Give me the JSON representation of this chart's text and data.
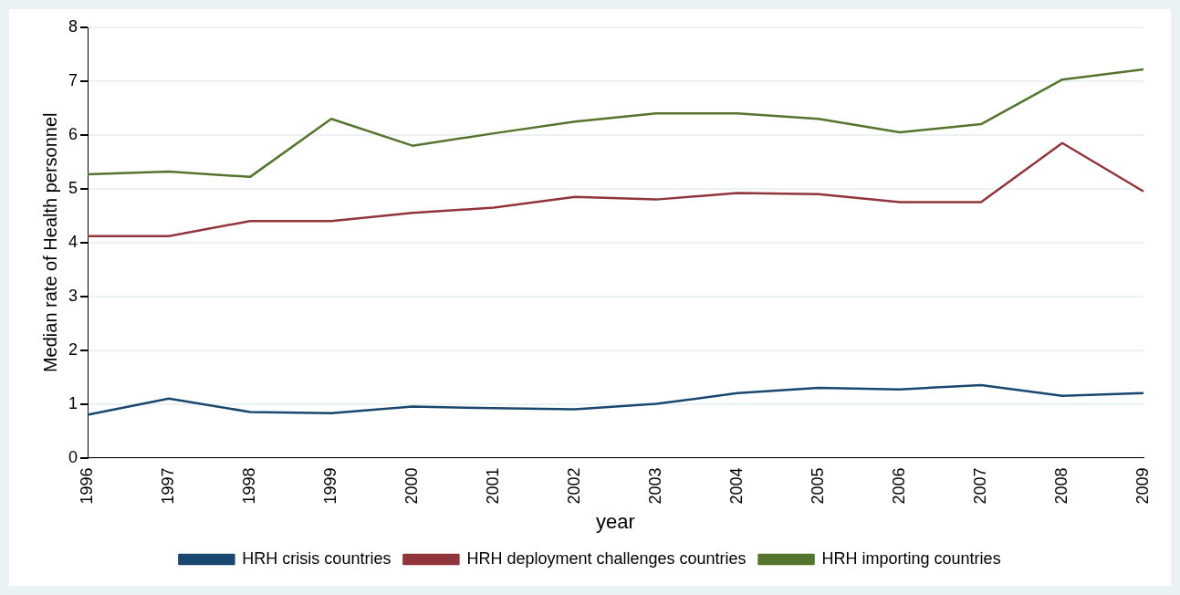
{
  "chart_data": {
    "type": "line",
    "xlabel": "year",
    "ylabel": "Median rate of Health personnel",
    "categories": [
      "1996",
      "1997",
      "1998",
      "1999",
      "2000",
      "2001",
      "2002",
      "2003",
      "2004",
      "2005",
      "2006",
      "2007",
      "2008",
      "2009"
    ],
    "series": [
      {
        "name": "HRH crisis countries",
        "color": "#1a476f",
        "values": [
          0.8,
          1.1,
          0.85,
          0.83,
          0.95,
          0.92,
          0.9,
          1.0,
          1.2,
          1.3,
          1.27,
          1.35,
          1.15,
          1.2
        ]
      },
      {
        "name": "HRH deployment challenges countries",
        "color": "#90353b",
        "values": [
          4.12,
          4.12,
          4.4,
          4.4,
          4.55,
          4.65,
          4.85,
          4.8,
          4.92,
          4.9,
          4.75,
          4.75,
          5.85,
          4.95
        ]
      },
      {
        "name": "HRH importing countries",
        "color": "#55752f",
        "values": [
          5.27,
          5.32,
          5.22,
          6.3,
          5.8,
          6.03,
          6.25,
          6.4,
          6.4,
          6.3,
          6.05,
          6.2,
          7.03,
          7.22
        ]
      }
    ],
    "ylim": [
      0,
      8
    ],
    "yticks": [
      0,
      1,
      2,
      3,
      4,
      5,
      6,
      7,
      8
    ],
    "grid": "y",
    "legend": "bottom",
    "marker": "none",
    "line_style": "solid"
  }
}
